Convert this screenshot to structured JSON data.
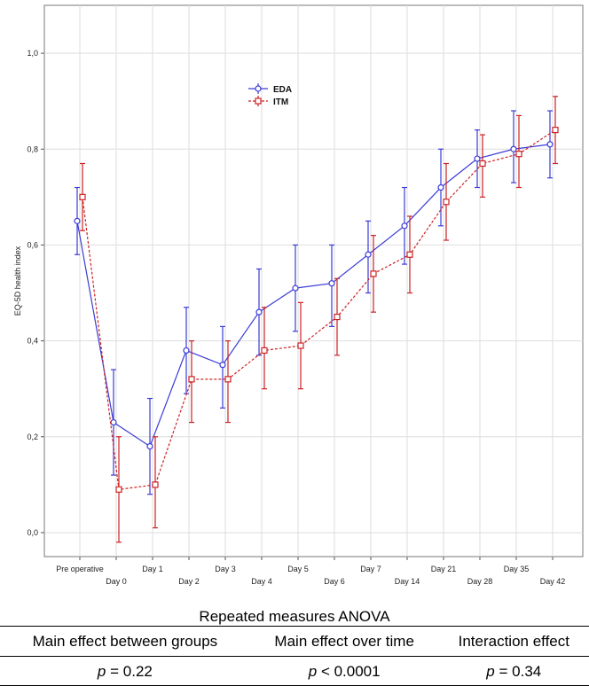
{
  "chart_data": {
    "type": "line",
    "ylabel": "EQ-5D health index",
    "xlabel": "",
    "ylim": [
      -0.05,
      1.1
    ],
    "yticks": [
      0.0,
      0.2,
      0.4,
      0.6,
      0.8,
      1.0
    ],
    "ytick_labels": [
      "0,0",
      "0,2",
      "0,4",
      "0,6",
      "0,8",
      "1,0"
    ],
    "grid": true,
    "legend_position": "upper-center",
    "categories": [
      "Pre operative",
      "Day 0",
      "Day 1",
      "Day 2",
      "Day 3",
      "Day 4",
      "Day 5",
      "Day 6",
      "Day 7",
      "Day 14",
      "Day 21",
      "Day 28",
      "Day 35",
      "Day 42"
    ],
    "series": [
      {
        "name": "EDA",
        "color": "#3b3bd6",
        "line_style": "solid",
        "marker": "circle",
        "values": [
          0.65,
          0.23,
          0.18,
          0.38,
          0.35,
          0.46,
          0.51,
          0.52,
          0.58,
          0.64,
          0.72,
          0.78,
          0.8,
          0.81
        ],
        "lower": [
          0.58,
          0.12,
          0.08,
          0.29,
          0.26,
          0.37,
          0.42,
          0.43,
          0.5,
          0.56,
          0.64,
          0.72,
          0.73,
          0.74
        ],
        "upper": [
          0.72,
          0.34,
          0.28,
          0.47,
          0.43,
          0.55,
          0.6,
          0.6,
          0.65,
          0.72,
          0.8,
          0.84,
          0.88,
          0.88
        ]
      },
      {
        "name": "ITM",
        "color": "#cc2222",
        "line_style": "dashed",
        "marker": "square",
        "values": [
          0.7,
          0.09,
          0.1,
          0.32,
          0.32,
          0.38,
          0.39,
          0.45,
          0.54,
          0.58,
          0.69,
          0.77,
          0.79,
          0.84
        ],
        "lower": [
          0.63,
          -0.02,
          0.01,
          0.23,
          0.23,
          0.3,
          0.3,
          0.37,
          0.46,
          0.5,
          0.61,
          0.7,
          0.72,
          0.77
        ],
        "upper": [
          0.77,
          0.2,
          0.2,
          0.4,
          0.4,
          0.47,
          0.48,
          0.53,
          0.62,
          0.66,
          0.77,
          0.83,
          0.87,
          0.91
        ]
      }
    ]
  },
  "anova": {
    "title": "Repeated measures ANOVA",
    "headers": [
      "Main effect between groups",
      "Main effect over time",
      "Interaction effect"
    ],
    "p_label": "p",
    "values": [
      "= 0.22",
      "< 0.0001",
      "= 0.34"
    ]
  }
}
